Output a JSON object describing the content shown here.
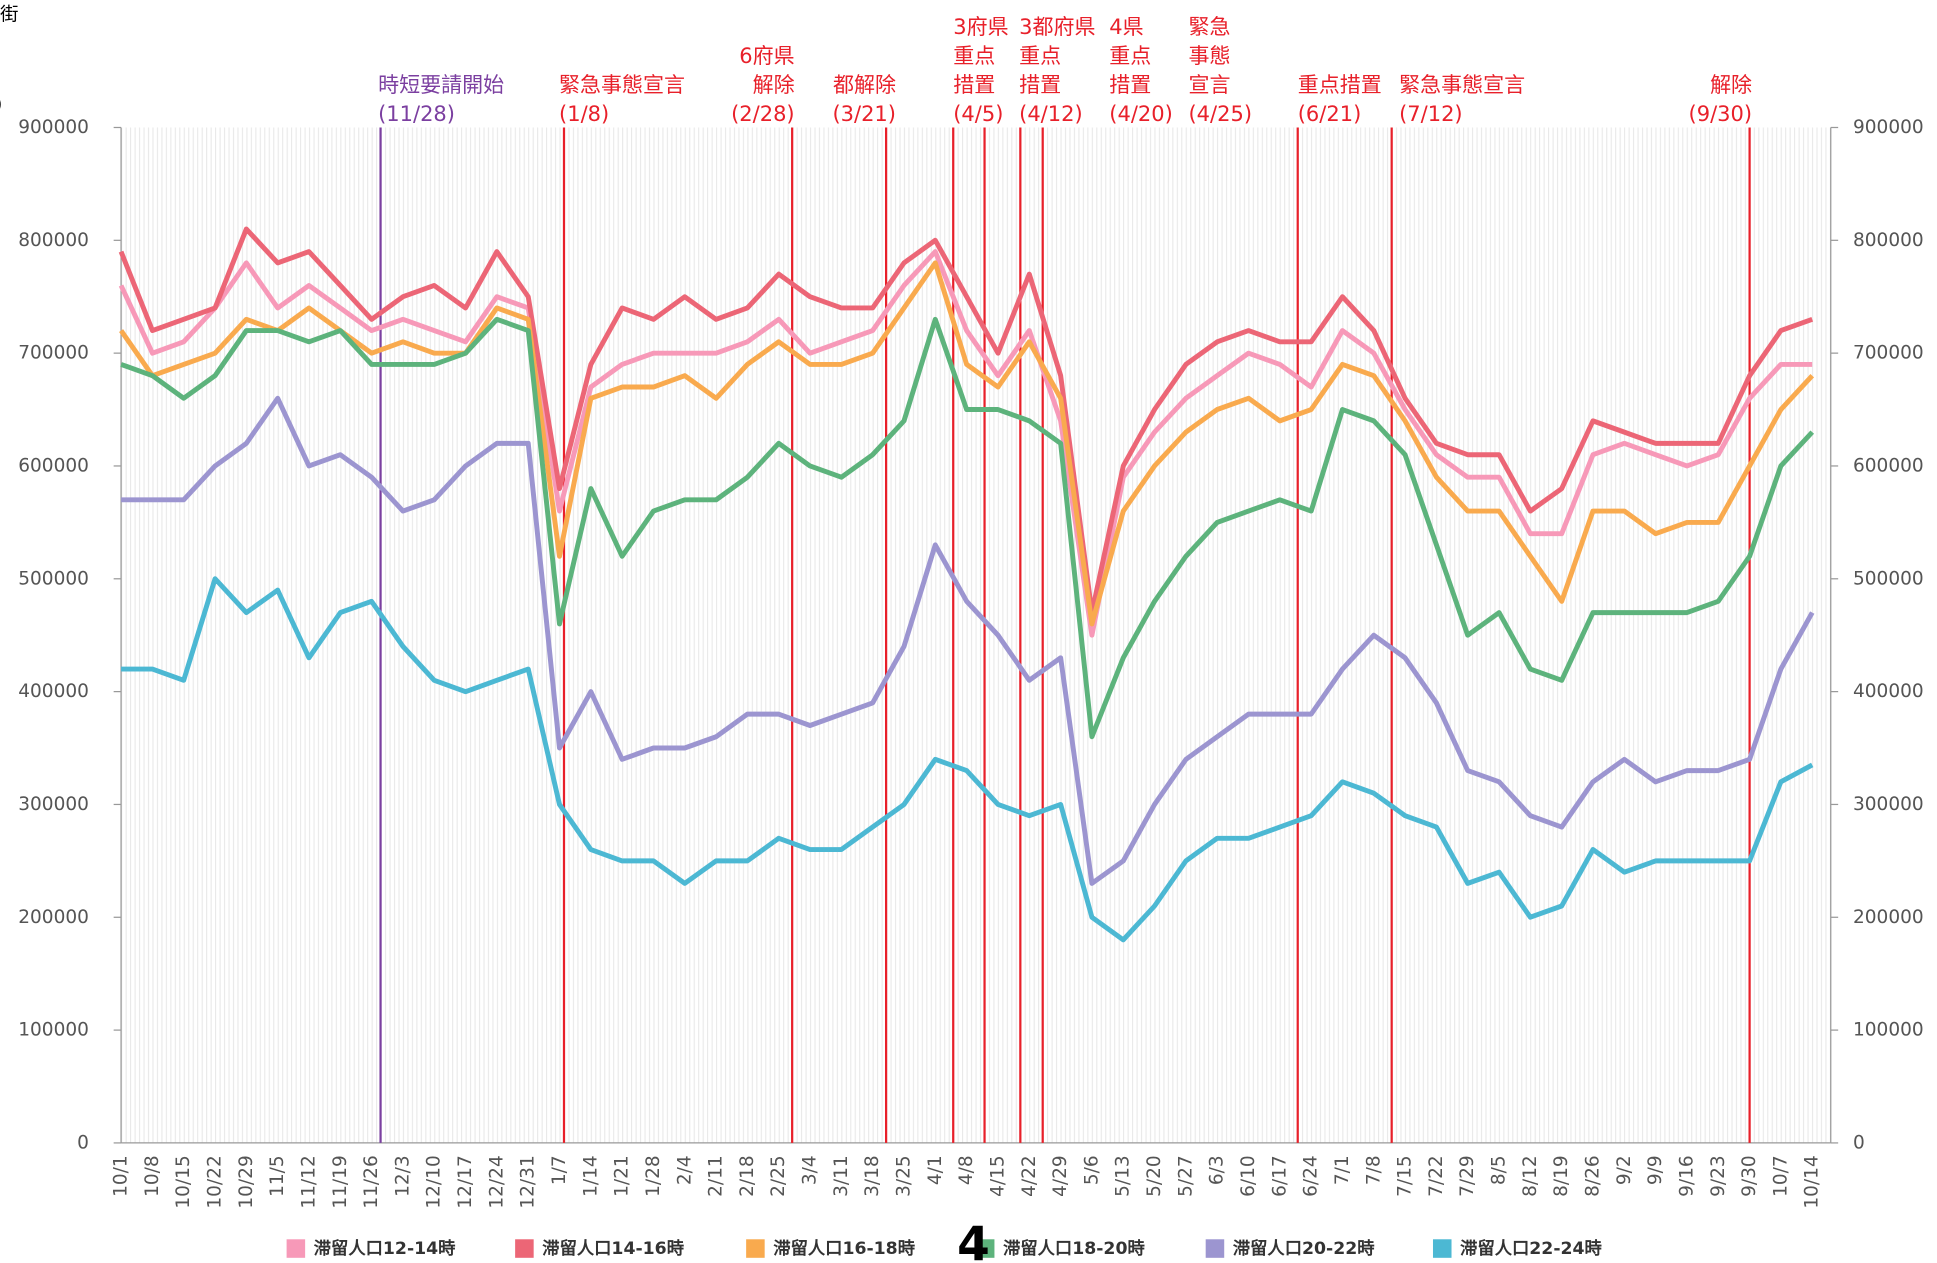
{
  "chart_data": {
    "type": "line",
    "corner_texts": [
      "街",
      ")"
    ],
    "page_number": "4",
    "categories": [
      "10/1",
      "10/8",
      "10/15",
      "10/22",
      "10/29",
      "11/5",
      "11/12",
      "11/19",
      "11/26",
      "12/3",
      "12/10",
      "12/17",
      "12/24",
      "12/31",
      "1/7",
      "1/14",
      "1/21",
      "1/28",
      "2/4",
      "2/11",
      "2/18",
      "2/25",
      "3/4",
      "3/11",
      "3/18",
      "3/25",
      "4/1",
      "4/8",
      "4/15",
      "4/22",
      "4/29",
      "5/6",
      "5/13",
      "5/20",
      "5/27",
      "6/3",
      "6/10",
      "6/17",
      "6/24",
      "7/1",
      "7/8",
      "7/15",
      "7/22",
      "7/29",
      "8/5",
      "8/12",
      "8/19",
      "8/26",
      "9/2",
      "9/9",
      "9/16",
      "9/23",
      "9/30",
      "10/7",
      "10/14"
    ],
    "series": [
      {
        "name": "滞留人口12-14時",
        "color": "#f799b8",
        "values": [
          760000,
          700000,
          710000,
          740000,
          780000,
          740000,
          760000,
          740000,
          720000,
          730000,
          720000,
          710000,
          750000,
          740000,
          560000,
          670000,
          690000,
          700000,
          700000,
          700000,
          710000,
          730000,
          700000,
          710000,
          720000,
          760000,
          790000,
          720000,
          680000,
          720000,
          640000,
          450000,
          590000,
          630000,
          660000,
          680000,
          700000,
          690000,
          670000,
          720000,
          700000,
          650000,
          610000,
          590000,
          590000,
          540000,
          540000,
          610000,
          620000,
          610000,
          600000,
          610000,
          660000,
          690000,
          690000
        ]
      },
      {
        "name": "滞留人口14-16時",
        "color": "#ec6676",
        "values": [
          790000,
          720000,
          730000,
          740000,
          810000,
          780000,
          790000,
          760000,
          730000,
          750000,
          760000,
          740000,
          790000,
          750000,
          580000,
          690000,
          740000,
          730000,
          750000,
          730000,
          740000,
          770000,
          750000,
          740000,
          740000,
          780000,
          800000,
          750000,
          700000,
          770000,
          680000,
          470000,
          600000,
          650000,
          690000,
          710000,
          720000,
          710000,
          710000,
          750000,
          720000,
          660000,
          620000,
          610000,
          610000,
          560000,
          580000,
          640000,
          630000,
          620000,
          620000,
          620000,
          680000,
          720000,
          730000
        ]
      },
      {
        "name": "滞留人口16-18時",
        "color": "#f9aa4e",
        "values": [
          720000,
          680000,
          690000,
          700000,
          730000,
          720000,
          740000,
          720000,
          700000,
          710000,
          700000,
          700000,
          740000,
          730000,
          520000,
          660000,
          670000,
          670000,
          680000,
          660000,
          690000,
          710000,
          690000,
          690000,
          700000,
          740000,
          780000,
          690000,
          670000,
          710000,
          660000,
          460000,
          560000,
          600000,
          630000,
          650000,
          660000,
          640000,
          650000,
          690000,
          680000,
          640000,
          590000,
          560000,
          560000,
          520000,
          480000,
          560000,
          560000,
          540000,
          550000,
          550000,
          600000,
          650000,
          680000
        ]
      },
      {
        "name": "滞留人口18-20時",
        "color": "#5db37c",
        "values": [
          690000,
          680000,
          660000,
          680000,
          720000,
          720000,
          710000,
          720000,
          690000,
          690000,
          690000,
          700000,
          730000,
          720000,
          460000,
          580000,
          520000,
          560000,
          570000,
          570000,
          590000,
          620000,
          600000,
          590000,
          610000,
          640000,
          730000,
          650000,
          650000,
          640000,
          620000,
          360000,
          430000,
          480000,
          520000,
          550000,
          560000,
          570000,
          560000,
          650000,
          640000,
          610000,
          530000,
          450000,
          470000,
          420000,
          410000,
          470000,
          470000,
          470000,
          470000,
          480000,
          520000,
          600000,
          630000
        ]
      },
      {
        "name": "滞留人口20-22時",
        "color": "#9c95d0",
        "values": [
          570000,
          570000,
          570000,
          600000,
          620000,
          660000,
          600000,
          610000,
          590000,
          560000,
          570000,
          600000,
          620000,
          620000,
          350000,
          400000,
          340000,
          350000,
          350000,
          360000,
          380000,
          380000,
          370000,
          380000,
          390000,
          440000,
          530000,
          480000,
          450000,
          410000,
          430000,
          230000,
          250000,
          300000,
          340000,
          360000,
          380000,
          380000,
          380000,
          420000,
          450000,
          430000,
          390000,
          330000,
          320000,
          290000,
          280000,
          320000,
          340000,
          320000,
          330000,
          330000,
          340000,
          420000,
          470000
        ]
      },
      {
        "name": "滞留人口22-24時",
        "color": "#4cb8d3",
        "values": [
          420000,
          420000,
          410000,
          500000,
          470000,
          490000,
          430000,
          470000,
          480000,
          440000,
          410000,
          400000,
          410000,
          420000,
          300000,
          260000,
          250000,
          250000,
          230000,
          250000,
          250000,
          270000,
          260000,
          260000,
          280000,
          300000,
          340000,
          330000,
          300000,
          290000,
          300000,
          200000,
          180000,
          210000,
          250000,
          270000,
          270000,
          280000,
          290000,
          320000,
          310000,
          290000,
          280000,
          230000,
          240000,
          200000,
          210000,
          260000,
          240000,
          250000,
          250000,
          250000,
          250000,
          320000,
          335000
        ]
      }
    ],
    "ylim": [
      0,
      900000
    ],
    "yticks": [
      0,
      100000,
      200000,
      300000,
      400000,
      500000,
      600000,
      700000,
      800000,
      900000
    ],
    "y2lim": [
      0,
      900000
    ],
    "y2ticks": [
      0,
      100000,
      200000,
      300000,
      400000,
      500000,
      600000,
      700000,
      800000,
      900000
    ],
    "annotations": [
      {
        "text": [
          "時短要請開始"
        ],
        "date": "(11/28)",
        "color": "#7b3fa0"
      },
      {
        "text": [
          "緊急事態宣言"
        ],
        "date": "(1/8)",
        "color": "#e8202a"
      },
      {
        "text": [
          "6府県",
          "解除"
        ],
        "date": "(2/28)",
        "color": "#e8202a"
      },
      {
        "text": [
          "都解除"
        ],
        "date": "(3/21)",
        "color": "#e8202a"
      },
      {
        "text": [
          "3府県",
          "重点",
          "措置"
        ],
        "date": "(4/5)",
        "color": "#e8202a"
      },
      {
        "text": [
          "3都府県",
          "重点",
          "措置"
        ],
        "date": "(4/12)",
        "color": "#e8202a"
      },
      {
        "text": [
          "4県",
          "重点",
          "措置"
        ],
        "date": "(4/20)",
        "color": "#e8202a"
      },
      {
        "text": [
          "緊急",
          "事態",
          "宣言"
        ],
        "date": "(4/25)",
        "color": "#e8202a"
      },
      {
        "text": [
          "重点措置"
        ],
        "date": "(6/21)",
        "color": "#e8202a"
      },
      {
        "text": [
          "緊急事態宣言"
        ],
        "date": "(7/12)",
        "color": "#e8202a"
      },
      {
        "text": [
          "解除"
        ],
        "date": "(9/30)",
        "color": "#e8202a"
      }
    ]
  }
}
